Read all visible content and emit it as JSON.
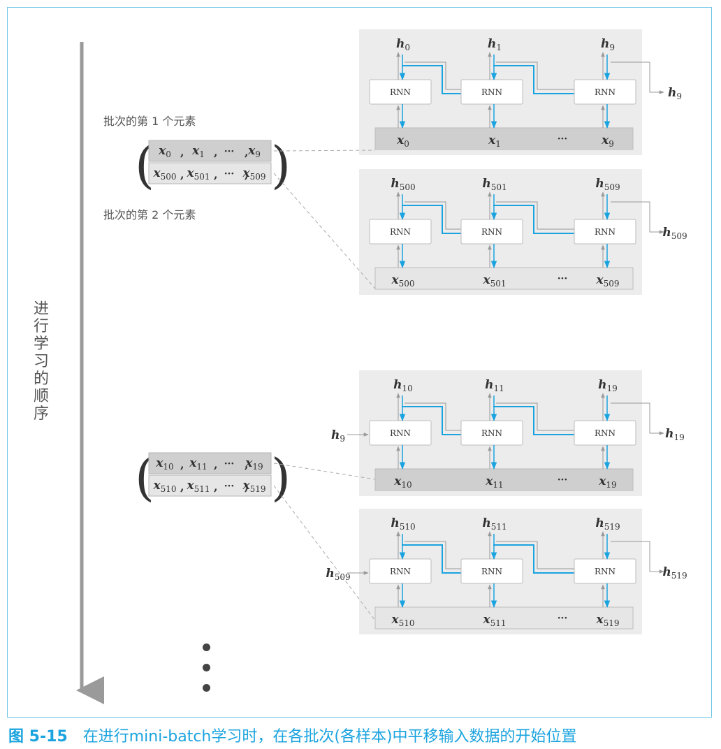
{
  "caption": {
    "number": "图 5-15",
    "text": "在进行mini-batch学习时，在各批次(各样本)中平移输入数据的开始位置"
  },
  "sequence_label": "进行学习的顺序",
  "notes": {
    "first_element": "批次的第 1 个元素",
    "second_element": "批次的第 2 个元素"
  },
  "colors": {
    "accent": "#1aa3df",
    "panel": "#ececec",
    "x_strip_dark": "#cfcfcf",
    "x_strip_light": "#e6e6e6",
    "frame": "#6cc4e6"
  },
  "rnn_label": "RNN",
  "ellipsis": "···",
  "batches": [
    {
      "rows": [
        [
          "x0",
          "x1",
          "···",
          "x9"
        ],
        [
          "x500",
          "x501",
          "···",
          "x509"
        ]
      ]
    },
    {
      "rows": [
        [
          "x10",
          "x11",
          "···",
          "x19"
        ],
        [
          "x510",
          "x511",
          "···",
          "x519"
        ]
      ]
    }
  ],
  "panels": [
    {
      "h_in": "",
      "h": [
        "h0",
        "h1",
        "h9"
      ],
      "x": [
        "x0",
        "x1",
        "x9"
      ],
      "h_out": "h9",
      "strip": "dark"
    },
    {
      "h_in": "",
      "h": [
        "h500",
        "h501",
        "h509"
      ],
      "x": [
        "x500",
        "x501",
        "x509"
      ],
      "h_out": "h509",
      "strip": "light"
    },
    {
      "h_in": "h9",
      "h": [
        "h10",
        "h11",
        "h19"
      ],
      "x": [
        "x10",
        "x11",
        "x19"
      ],
      "h_out": "h19",
      "strip": "dark"
    },
    {
      "h_in": "h509",
      "h": [
        "h510",
        "h511",
        "h519"
      ],
      "x": [
        "x510",
        "x511",
        "x519"
      ],
      "h_out": "h519",
      "strip": "light"
    }
  ]
}
